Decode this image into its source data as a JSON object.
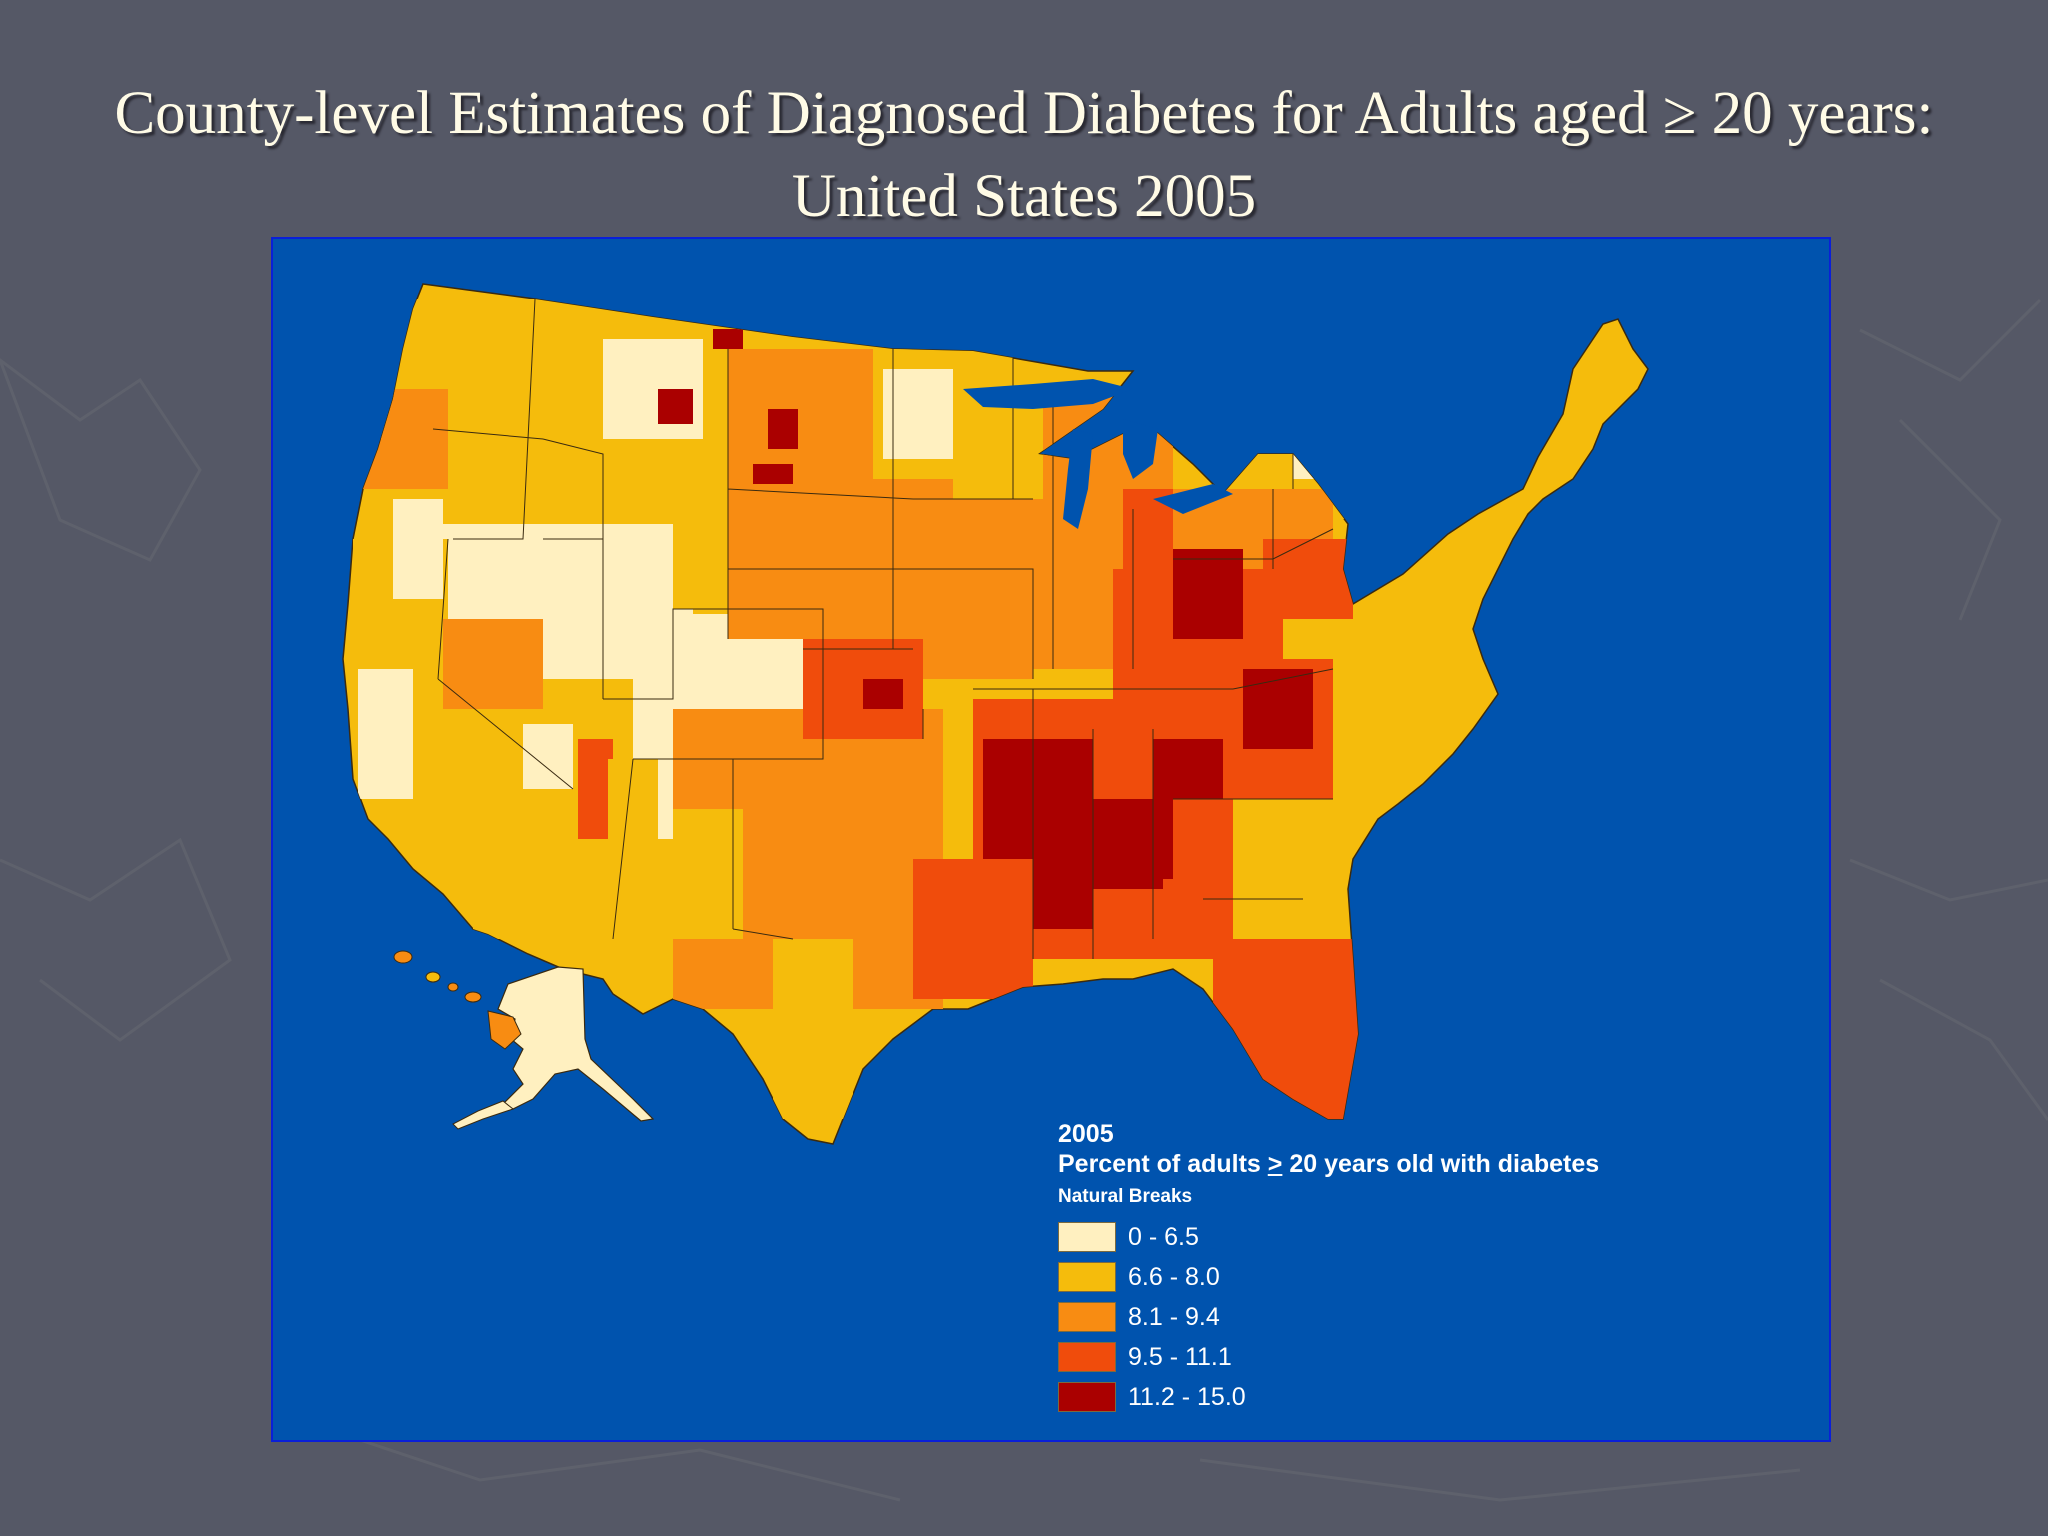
{
  "slide": {
    "title_line1": "County-level Estimates of Diagnosed Diabetes for Adults aged ≥ 20 years:",
    "title_line2": "United States 2005",
    "background_color": "#555866"
  },
  "map": {
    "background_color": "#0053ae",
    "legend": {
      "year": "2005",
      "title_before": "Percent of adults ",
      "title_symbol": ">",
      "title_after": " 20 years old with diabetes",
      "method": "Natural Breaks",
      "classes": [
        {
          "label": "0 - 6.5",
          "color": "#fff0c0"
        },
        {
          "label": "6.6 - 8.0",
          "color": "#f5bc0c"
        },
        {
          "label": "8.1 - 9.4",
          "color": "#f88c12"
        },
        {
          "label": "9.5 - 11.1",
          "color": "#f04c0c"
        },
        {
          "label": "11.2 - 15.0",
          "color": "#aa0000"
        }
      ]
    }
  }
}
